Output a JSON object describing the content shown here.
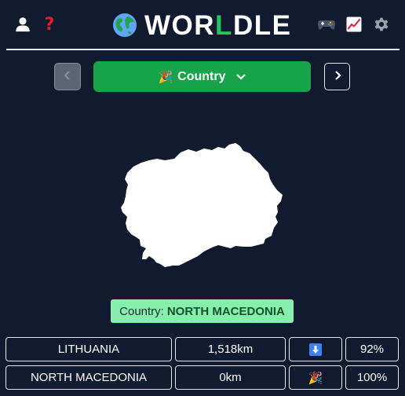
{
  "header": {
    "logo_prefix": "WOR",
    "logo_highlight": "L",
    "logo_suffix": "DLE",
    "help_glyph": "?",
    "icons": [
      "user-icon",
      "help-icon",
      "globe-icon",
      "game-icon",
      "stats-icon",
      "gear-icon"
    ]
  },
  "nav": {
    "mode_label": "Country",
    "mode_emoji": "🎉"
  },
  "answer": {
    "label": "Country:",
    "value": "NORTH MACEDONIA"
  },
  "guesses": [
    {
      "country": "LITHUANIA",
      "distance": "1,518km",
      "direction": "down-arrow",
      "proximity": "92%"
    },
    {
      "country": "NORTH MACEDONIA",
      "distance": "0km",
      "direction": "🎉",
      "proximity": "100%"
    }
  ],
  "colors": {
    "background": "#111a2e",
    "accent_green": "#16a34a",
    "badge_green": "#86efac",
    "help_red": "#e11d2a",
    "arrow_blue": "#3b82f6"
  }
}
